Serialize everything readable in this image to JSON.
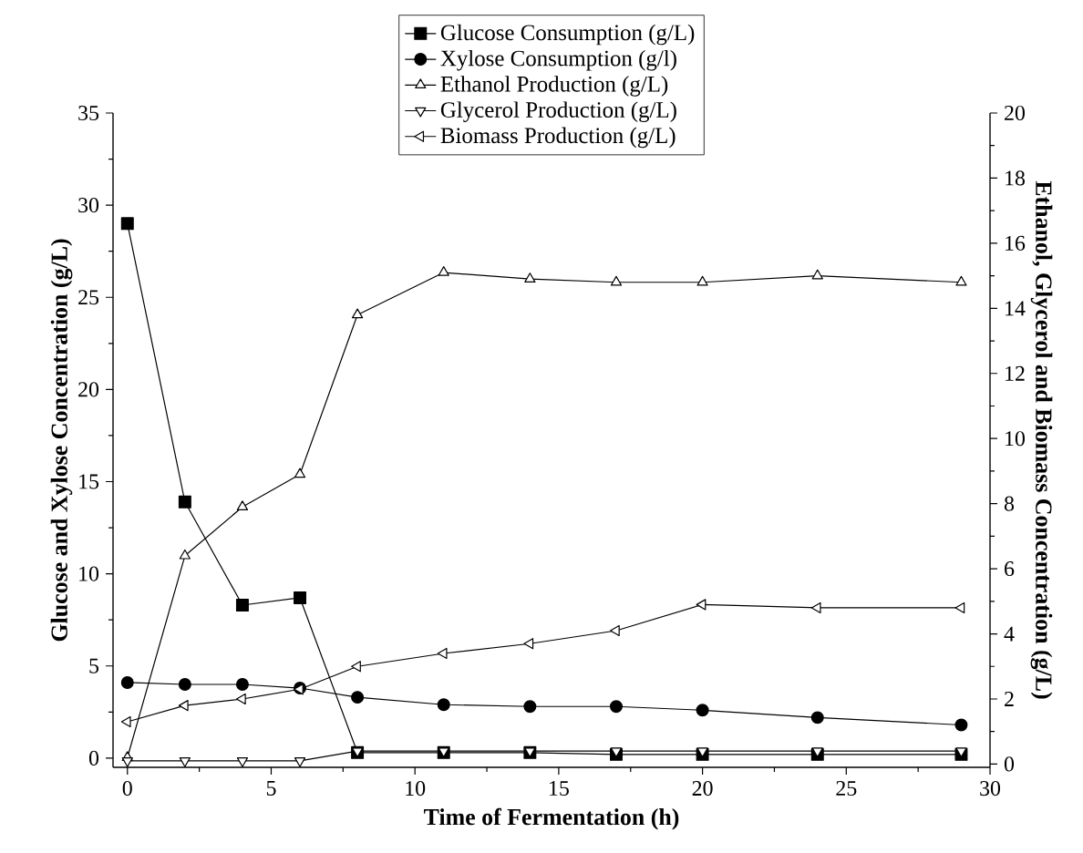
{
  "chart_data": {
    "type": "line",
    "xlabel": "Time of Fermentation (h)",
    "ylabel": "Glucose and Xylose Concentration (g/L)",
    "y2label": "Ethanol, Glycerol and Biomass Concentration (g/L)",
    "x": [
      0,
      2,
      4,
      6,
      8,
      11,
      14,
      17,
      20,
      24,
      29
    ],
    "xlim": [
      -0.5,
      30
    ],
    "xticks": [
      0,
      5,
      10,
      15,
      20,
      25,
      30
    ],
    "ylim": [
      -0.5,
      35
    ],
    "yticks": [
      0,
      5,
      10,
      15,
      20,
      25,
      30,
      35
    ],
    "y2lim": [
      -0.1,
      20
    ],
    "y2ticks": [
      0,
      2,
      4,
      6,
      8,
      10,
      12,
      14,
      16,
      18,
      20
    ],
    "legend": "top",
    "grid": false,
    "series": [
      {
        "name": "Glucose Consumption (g/L)",
        "color": "#000000",
        "marker": "square",
        "values": [
          29,
          13.9,
          8.3,
          8.7,
          0.3,
          0.3,
          0.3,
          0.2,
          0.2,
          0.2,
          0.2
        ]
      },
      {
        "name": "Xylose Consumption (g/l)",
        "color": "#000000",
        "marker": "circle",
        "values": [
          4.1,
          4.0,
          4.0,
          3.8,
          3.3,
          2.9,
          2.8,
          2.8,
          2.6,
          2.2,
          1.8
        ]
      },
      {
        "name": "Ethanol Production (g/L)",
        "color": "#000000",
        "marker": "triangle",
        "axis": "y2",
        "values": [
          0.2,
          6.4,
          7.9,
          8.9,
          13.8,
          15.1,
          14.9,
          14.8,
          14.8,
          15.0,
          14.8
        ]
      },
      {
        "name": "Glycerol Production (g/L)",
        "color": "#000000",
        "marker": "triangle-down",
        "axis": "y2",
        "values": [
          0.1,
          0.1,
          0.1,
          0.1,
          0.4,
          0.4,
          0.4,
          0.4,
          0.4,
          0.4,
          0.4
        ]
      },
      {
        "name": "Biomass Production (g/L)",
        "color": "#000000",
        "marker": "triangle-left",
        "axis": "y2",
        "values": [
          1.3,
          1.8,
          2.0,
          2.3,
          3.0,
          3.4,
          3.7,
          4.1,
          4.9,
          4.8,
          4.8
        ]
      }
    ]
  }
}
